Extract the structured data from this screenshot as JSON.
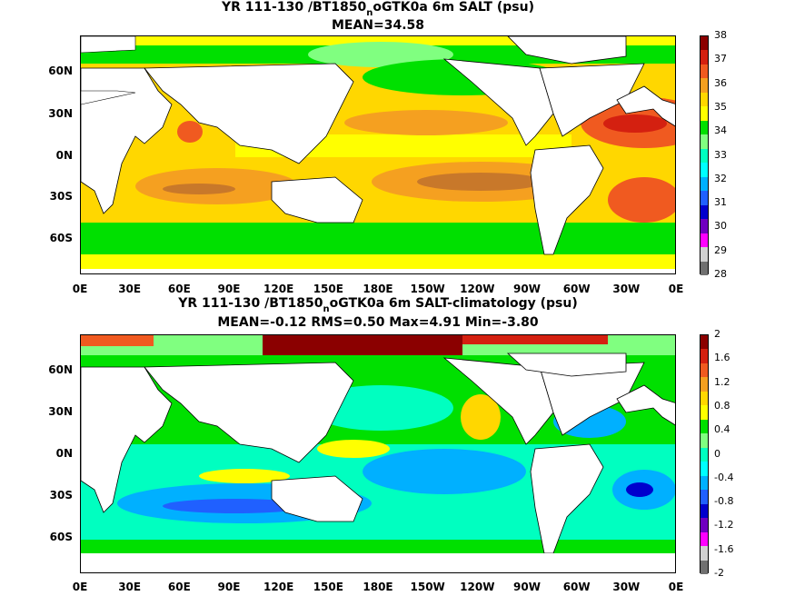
{
  "panels": [
    {
      "title_pre": "YR 111-130 /BT1850",
      "title_sub": "n",
      "title_post": "oGTK0a 6m SALT (psu)",
      "subtitle": "MEAN=34.58",
      "colorbar_labels": [
        "38",
        "37",
        "36",
        "35",
        "34",
        "33",
        "32",
        "31",
        "30",
        "29",
        "28"
      ],
      "colorbar_colors": [
        "#8b0000",
        "#d42010",
        "#f05a20",
        "#f5a020",
        "#ffd700",
        "#ffff00",
        "#00e000",
        "#80ff80",
        "#00ffc0",
        "#00ffff",
        "#00b0ff",
        "#2060ff",
        "#0000cd",
        "#7000c0",
        "#ff00ff",
        "#d0d0d0",
        "#707070"
      ]
    },
    {
      "title_pre": "YR 111-130 /BT1850",
      "title_sub": "n",
      "title_post": "oGTK0a 6m SALT-climatology (psu)",
      "subtitle": "MEAN=-0.12   RMS=0.50   Max=4.91   Min=-3.80",
      "colorbar_labels": [
        "2",
        "1.6",
        "1.2",
        "0.8",
        "0.4",
        "0",
        "-0.4",
        "-0.8",
        "-1.2",
        "-1.6",
        "-2"
      ],
      "colorbar_colors": [
        "#8b0000",
        "#d42010",
        "#f05a20",
        "#f5a020",
        "#ffd700",
        "#ffff00",
        "#00e000",
        "#80ff80",
        "#00ffc0",
        "#00ffff",
        "#00b0ff",
        "#2060ff",
        "#0000cd",
        "#7000c0",
        "#ff00ff",
        "#d0d0d0",
        "#707070"
      ]
    }
  ],
  "x_tick_labels": [
    "0E",
    "30E",
    "60E",
    "90E",
    "120E",
    "150E",
    "180E",
    "150W",
    "120W",
    "90W",
    "60W",
    "30W",
    "0E"
  ],
  "y_tick_labels": [
    "60N",
    "30N",
    "0N",
    "30S",
    "60S"
  ]
}
